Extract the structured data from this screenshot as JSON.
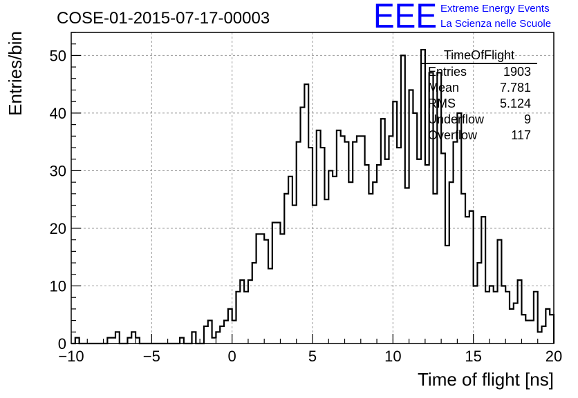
{
  "header": {
    "run_title": "COSE-01-2015-07-17-00003",
    "logo_text": "EEE",
    "logo_line1": "Extreme Energy Events",
    "logo_line2": "La Scienza nelle Scuole"
  },
  "colors": {
    "logo": "#0000ff",
    "histogram": "#000000",
    "grid": "#9a9a9a",
    "background": "#ffffff"
  },
  "stats_box": {
    "title": "TimeOfFlight",
    "rows": [
      {
        "label": "Entries",
        "value": "1903"
      },
      {
        "label": "Mean",
        "value": "7.781"
      },
      {
        "label": "RMS",
        "value": "5.124"
      },
      {
        "label": "Underflow",
        "value": "9"
      },
      {
        "label": "Overflow",
        "value": "117"
      }
    ]
  },
  "chart_data": {
    "type": "bar",
    "histogram_style": "step",
    "xlabel": "Time of flight [ns]",
    "ylabel": "Entries/bin",
    "xlim": [
      -10,
      20
    ],
    "ylim": [
      0,
      54
    ],
    "grid": true,
    "bin_width": 0.25,
    "x_ticks": [
      -10,
      -5,
      0,
      5,
      10,
      15,
      20
    ],
    "y_ticks": [
      0,
      10,
      20,
      30,
      40,
      50
    ],
    "values": [
      0,
      1,
      0,
      0,
      0,
      0,
      0,
      0,
      0,
      1,
      1,
      2,
      0,
      0,
      1,
      2,
      1,
      0,
      0,
      0,
      0,
      0,
      0,
      0,
      0,
      0,
      0,
      1,
      0,
      0,
      2,
      0,
      0,
      3,
      4,
      1,
      2,
      3,
      4,
      6,
      4,
      9,
      11,
      9,
      11,
      14,
      19,
      19,
      18,
      13,
      21,
      21,
      19,
      26,
      29,
      24,
      35,
      41,
      45,
      34,
      24,
      37,
      34,
      25,
      30,
      29,
      37,
      36,
      35,
      28,
      35,
      36,
      36,
      31,
      26,
      28,
      31,
      39,
      32,
      36,
      42,
      34,
      50,
      27,
      44,
      40,
      32,
      51,
      31,
      47,
      26,
      47,
      33,
      17,
      28,
      35,
      40,
      26,
      22,
      23,
      10,
      14,
      22,
      9,
      10,
      9,
      18,
      10,
      9,
      6,
      7,
      11,
      5,
      4,
      4,
      9,
      2,
      3,
      6,
      5
    ]
  }
}
